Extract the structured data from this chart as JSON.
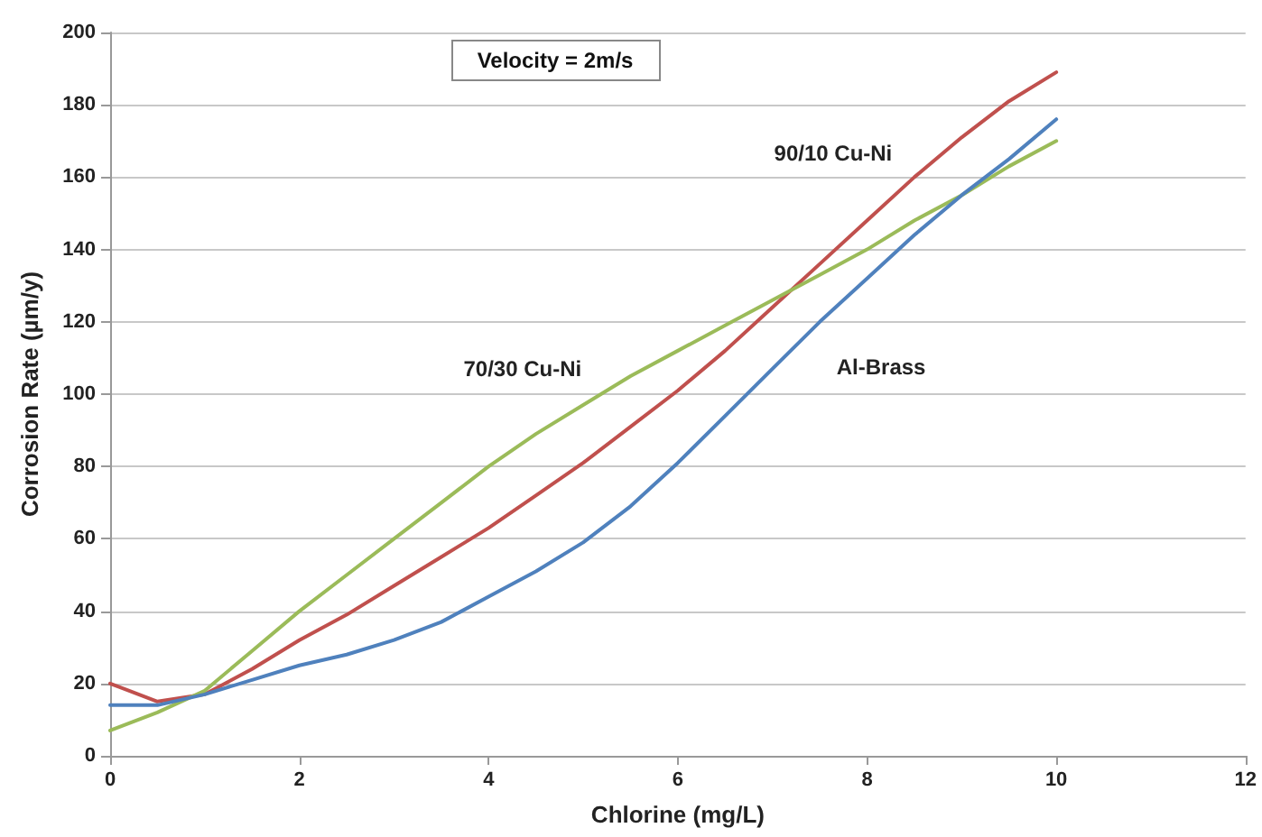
{
  "chart_data": {
    "type": "line",
    "xlabel": "Chlorine (mg/L)",
    "ylabel": "Corrosion Rate (µm/y)",
    "annotations": [
      "Velocity = 2m/s"
    ],
    "x": [
      0,
      0.5,
      1,
      1.5,
      2,
      2.5,
      3,
      3.5,
      4,
      4.5,
      5,
      5.5,
      6,
      6.5,
      7,
      7.5,
      8,
      8.5,
      9,
      9.5,
      10
    ],
    "series": [
      {
        "name": "90/10 Cu-Ni",
        "color": "#c0504d",
        "values": [
          20,
          15,
          17,
          24,
          32,
          39,
          47,
          55,
          63,
          72,
          81,
          91,
          101,
          112,
          124,
          136,
          148,
          160,
          171,
          181,
          189
        ]
      },
      {
        "name": "70/30 Cu-Ni",
        "color": "#9bbb59",
        "values": [
          7,
          12,
          18,
          29,
          40,
          50,
          60,
          70,
          80,
          89,
          97,
          105,
          112,
          119,
          126,
          133,
          140,
          148,
          155,
          163,
          170
        ]
      },
      {
        "name": "Al-Brass",
        "color": "#4f81bd",
        "values": [
          14,
          14,
          17,
          21,
          25,
          28,
          32,
          37,
          44,
          51,
          59,
          69,
          81,
          94,
          107,
          120,
          132,
          144,
          155,
          165,
          176
        ]
      }
    ],
    "xlim": [
      0,
      12
    ],
    "xticks": [
      0,
      2,
      4,
      6,
      8,
      10,
      12
    ],
    "ylim": [
      0,
      200
    ],
    "yticks": [
      0,
      20,
      40,
      60,
      80,
      100,
      120,
      140,
      160,
      180,
      200
    ],
    "grid": "y",
    "legend": false,
    "marker": "none",
    "line_style": "solid"
  }
}
